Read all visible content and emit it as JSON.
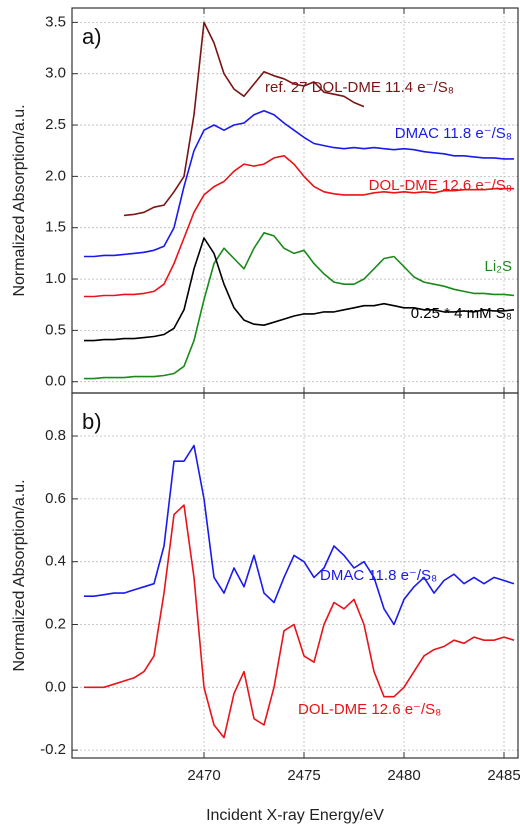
{
  "chart_data": [
    {
      "type": "line",
      "panel_label": "a)",
      "ylabel": "Normalized Absorption/a.u.",
      "x": [
        2464,
        2464.5,
        2465,
        2465.5,
        2466,
        2466.5,
        2467,
        2467.5,
        2468,
        2468.5,
        2469,
        2469.5,
        2470,
        2470.5,
        2471,
        2471.5,
        2472,
        2472.5,
        2473,
        2473.5,
        2474,
        2474.5,
        2475,
        2475.5,
        2476,
        2476.5,
        2477,
        2477.5,
        2478,
        2478.5,
        2479,
        2479.5,
        2480,
        2480.5,
        2481,
        2481.5,
        2482,
        2482.5,
        2483,
        2483.5,
        2484,
        2484.5,
        2485,
        2485.5
      ],
      "xlim": [
        2463.4,
        2485.7
      ],
      "xticks": [
        2470,
        2475,
        2480,
        2485
      ],
      "ylim": [
        -0.11,
        3.64
      ],
      "yticks": [
        {
          "value": 0,
          "label": "0.0"
        },
        0.5,
        {
          "value": 1,
          "label": "1.0"
        },
        1.5,
        {
          "value": 2,
          "label": "2.0"
        },
        2.5,
        {
          "value": 3,
          "label": "3.0"
        },
        3.5
      ],
      "grid": true,
      "series": [
        {
          "name": "ref. 27 DOL-DME 11.4 e⁻/S₈",
          "color": "#7a1414",
          "values": [
            null,
            null,
            null,
            null,
            1.62,
            1.63,
            1.65,
            1.7,
            1.72,
            1.85,
            2.0,
            2.6,
            3.5,
            3.3,
            3.0,
            2.85,
            2.78,
            2.9,
            3.02,
            2.98,
            2.95,
            2.9,
            2.88,
            2.92,
            2.82,
            2.8,
            2.78,
            2.72,
            2.68,
            null,
            null,
            null,
            null,
            null,
            null,
            null,
            null,
            null,
            null,
            null,
            null,
            null,
            null,
            null
          ]
        },
        {
          "name": "DMAC 11.8 e⁻/S₈",
          "color": "#1a1aee",
          "values": [
            1.22,
            1.22,
            1.23,
            1.23,
            1.24,
            1.25,
            1.26,
            1.28,
            1.32,
            1.5,
            1.9,
            2.25,
            2.45,
            2.5,
            2.45,
            2.5,
            2.52,
            2.6,
            2.64,
            2.6,
            2.52,
            2.45,
            2.38,
            2.32,
            2.3,
            2.28,
            2.27,
            2.28,
            2.27,
            2.28,
            2.27,
            2.26,
            2.27,
            2.26,
            2.24,
            2.23,
            2.22,
            2.2,
            2.2,
            2.19,
            2.18,
            2.18,
            2.17,
            2.17
          ]
        },
        {
          "name": "DOL-DME 12.6 e⁻/S₈",
          "color": "#e8141a",
          "values": [
            0.83,
            0.83,
            0.84,
            0.84,
            0.85,
            0.85,
            0.86,
            0.88,
            0.95,
            1.15,
            1.4,
            1.65,
            1.82,
            1.9,
            1.95,
            2.05,
            2.12,
            2.1,
            2.12,
            2.18,
            2.2,
            2.12,
            2.0,
            1.9,
            1.85,
            1.83,
            1.82,
            1.82,
            1.82,
            1.84,
            1.85,
            1.84,
            1.85,
            1.84,
            1.85,
            1.84,
            1.86,
            1.86,
            1.87,
            1.87,
            1.87,
            1.88,
            1.88,
            1.88
          ]
        },
        {
          "name": "Li₂S",
          "color": "#1a8a1a",
          "values": [
            0.03,
            0.03,
            0.04,
            0.04,
            0.04,
            0.05,
            0.05,
            0.05,
            0.06,
            0.08,
            0.15,
            0.4,
            0.8,
            1.15,
            1.3,
            1.2,
            1.1,
            1.3,
            1.45,
            1.42,
            1.3,
            1.25,
            1.28,
            1.15,
            1.05,
            0.97,
            0.95,
            0.95,
            1.0,
            1.1,
            1.2,
            1.22,
            1.12,
            1.02,
            0.97,
            0.95,
            0.93,
            0.9,
            0.88,
            0.86,
            0.86,
            0.85,
            0.85,
            0.84
          ]
        },
        {
          "name": "0.25 * 4 mM S₈",
          "color": "#000000",
          "values": [
            0.4,
            0.4,
            0.41,
            0.41,
            0.42,
            0.42,
            0.43,
            0.44,
            0.46,
            0.52,
            0.7,
            1.1,
            1.4,
            1.25,
            0.95,
            0.72,
            0.6,
            0.56,
            0.55,
            0.58,
            0.61,
            0.64,
            0.66,
            0.66,
            0.68,
            0.68,
            0.7,
            0.72,
            0.74,
            0.74,
            0.76,
            0.74,
            0.72,
            0.72,
            0.7,
            0.7,
            0.68,
            0.68,
            0.69,
            0.68,
            0.7,
            0.69,
            0.69,
            0.7
          ]
        }
      ]
    },
    {
      "type": "line",
      "panel_label": "b)",
      "ylabel": "Normalized Absorption/a.u.",
      "xlabel": "Incident X-ray Energy/eV",
      "x": [
        2464,
        2464.5,
        2465,
        2465.5,
        2466,
        2466.5,
        2467,
        2467.5,
        2468,
        2468.5,
        2469,
        2469.5,
        2470,
        2470.5,
        2471,
        2471.5,
        2472,
        2472.5,
        2473,
        2473.5,
        2474,
        2474.5,
        2475,
        2475.5,
        2476,
        2476.5,
        2477,
        2477.5,
        2478,
        2478.5,
        2479,
        2479.5,
        2480,
        2480.5,
        2481,
        2481.5,
        2482,
        2482.5,
        2483,
        2483.5,
        2484,
        2484.5,
        2485,
        2485.5
      ],
      "xlim": [
        2463.4,
        2485.7
      ],
      "xticks": [
        2470,
        2475,
        2480,
        2485
      ],
      "ylim": [
        -0.225,
        0.937
      ],
      "yticks": [
        -0.2,
        {
          "value": 0,
          "label": "0.0"
        },
        0.2,
        0.4,
        0.6,
        0.8
      ],
      "grid": true,
      "series": [
        {
          "name": "DMAC 11.8 e⁻/S₈",
          "color": "#1a1aee",
          "values": [
            0.29,
            0.29,
            0.295,
            0.3,
            0.3,
            0.31,
            0.32,
            0.33,
            0.45,
            0.72,
            0.72,
            0.77,
            0.6,
            0.35,
            0.3,
            0.38,
            0.32,
            0.42,
            0.3,
            0.27,
            0.35,
            0.42,
            0.4,
            0.35,
            0.38,
            0.45,
            0.42,
            0.38,
            0.4,
            0.35,
            0.25,
            0.2,
            0.28,
            0.32,
            0.35,
            0.3,
            0.34,
            0.36,
            0.33,
            0.35,
            0.33,
            0.35,
            0.34,
            0.33
          ]
        },
        {
          "name": "DOL-DME 12.6 e⁻/S₈",
          "color": "#e8141a",
          "values": [
            0.0,
            0.0,
            0.0,
            0.01,
            0.02,
            0.03,
            0.05,
            0.1,
            0.3,
            0.55,
            0.58,
            0.35,
            0.0,
            -0.12,
            -0.16,
            -0.02,
            0.05,
            -0.1,
            -0.12,
            0.0,
            0.18,
            0.2,
            0.1,
            0.08,
            0.2,
            0.27,
            0.25,
            0.28,
            0.2,
            0.05,
            -0.03,
            -0.03,
            0.0,
            0.05,
            0.1,
            0.12,
            0.13,
            0.15,
            0.14,
            0.16,
            0.15,
            0.15,
            0.16,
            0.15
          ]
        }
      ]
    }
  ]
}
